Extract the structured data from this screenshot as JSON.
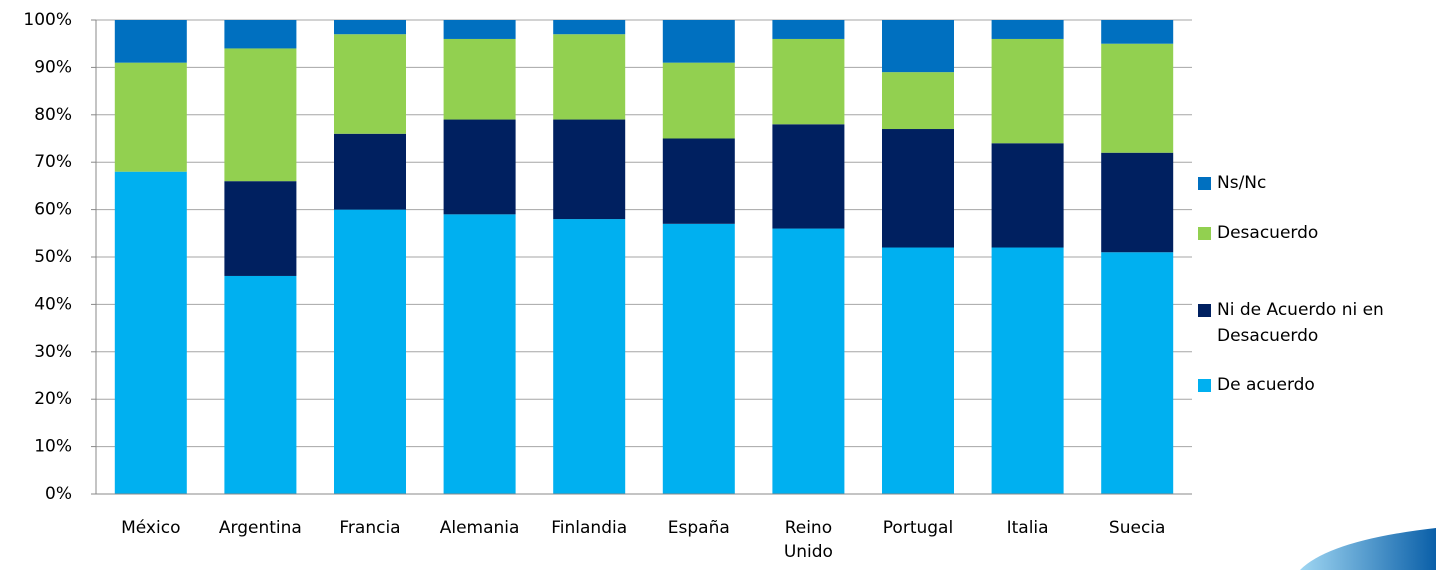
{
  "chart_data": {
    "type": "stacked_bar",
    "categories": [
      "México",
      "Argentina",
      "Francia",
      "Alemania",
      "Finlandia",
      "España",
      "Reino Unido",
      "Portugal",
      "Italia",
      "Suecia"
    ],
    "series": [
      {
        "name": "De acuerdo",
        "color": "#00b0f0",
        "values": [
          68,
          46,
          60,
          59,
          58,
          57,
          56,
          52,
          52,
          51
        ]
      },
      {
        "name": "Ni de Acuerdo ni en Desacuerdo",
        "color": "#002060",
        "values": [
          0,
          20,
          16,
          20,
          21,
          18,
          22,
          25,
          22,
          21
        ]
      },
      {
        "name": "Desacuerdo",
        "color": "#92d050",
        "values": [
          23,
          28,
          21,
          17,
          18,
          16,
          18,
          12,
          22,
          23
        ]
      },
      {
        "name": "Ns/Nc",
        "color": "#0070c0",
        "values": [
          9,
          6,
          3,
          4,
          3,
          9,
          4,
          11,
          4,
          5
        ]
      }
    ],
    "ylim": [
      0,
      100
    ],
    "yticks": [
      {
        "value": 0,
        "label": "0%"
      },
      {
        "value": 10,
        "label": "10%"
      },
      {
        "value": 20,
        "label": "20%"
      },
      {
        "value": 30,
        "label": "30%"
      },
      {
        "value": 40,
        "label": "40%"
      },
      {
        "value": 50,
        "label": "50%"
      },
      {
        "value": 60,
        "label": "60%"
      },
      {
        "value": 70,
        "label": "70%"
      },
      {
        "value": 80,
        "label": "80%"
      },
      {
        "value": 90,
        "label": "90%"
      },
      {
        "value": 100,
        "label": "100%"
      }
    ],
    "grid": true,
    "legend": "right"
  }
}
